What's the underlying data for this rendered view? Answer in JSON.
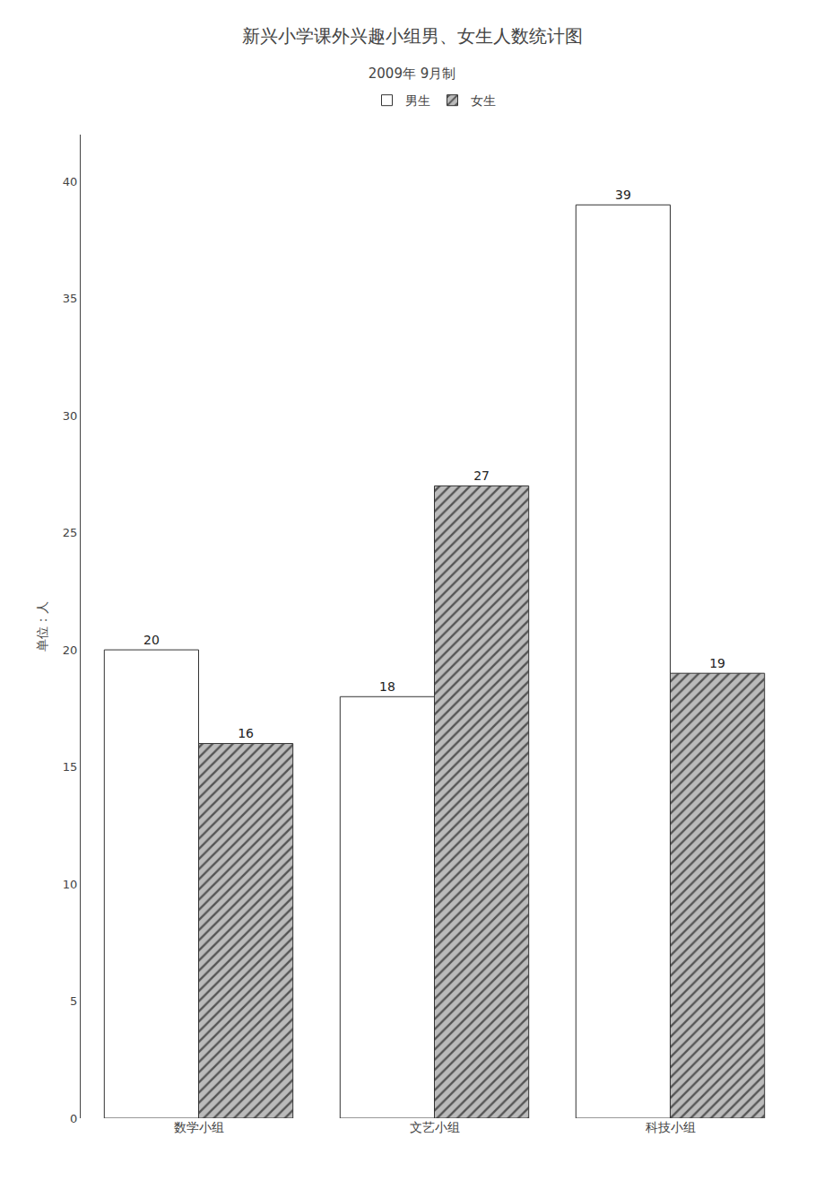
{
  "chart_data": {
    "type": "bar",
    "title": "新兴小学课外兴趣小组男、女生人数统计图",
    "subtitle": "2009年 9月制",
    "ylabel": "单位：人",
    "categories": [
      "数学小组",
      "文艺小组",
      "科技小组"
    ],
    "series": [
      {
        "name": "男生",
        "color": "#ffffff",
        "values": [
          20,
          18,
          39
        ]
      },
      {
        "name": "女生",
        "color": "#bbbbbb",
        "values": [
          16,
          27,
          19
        ]
      }
    ],
    "ylim": [
      0,
      42
    ],
    "yticks": [
      0,
      5,
      10,
      15,
      20,
      25,
      30,
      35,
      40
    ],
    "grid": false,
    "data_labels": true,
    "legend": "top"
  }
}
